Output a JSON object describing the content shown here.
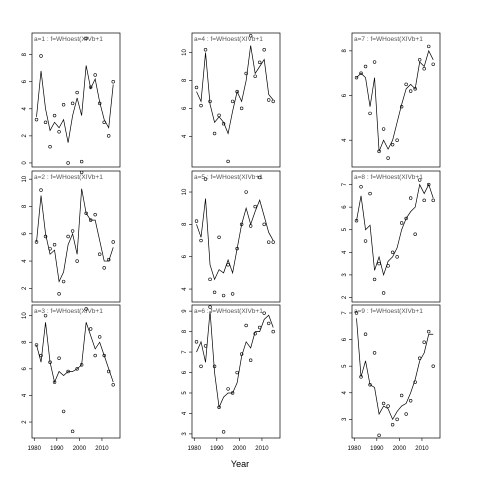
{
  "xlabel": "Year",
  "chart_data": [
    {
      "type": "scatter",
      "title": "a=1 : f=WHoest(XIVb+1",
      "x": [
        1981,
        1983,
        1985,
        1987,
        1989,
        1991,
        1993,
        1995,
        1997,
        1999,
        2001,
        2003,
        2005,
        2007,
        2009,
        2011,
        2013,
        2015
      ],
      "values": [
        3.2,
        7.9,
        3.0,
        1.2,
        3.5,
        2.3,
        4.3,
        0.0,
        4.4,
        5.2,
        0.1,
        9.2,
        5.6,
        6.5,
        4.4,
        3.0,
        2.0,
        6.0
      ],
      "line": [
        3.4,
        6.8,
        4.0,
        2.4,
        3.0,
        2.6,
        3.2,
        1.5,
        3.5,
        4.8,
        3.5,
        7.2,
        5.5,
        6.2,
        4.5,
        3.2,
        2.6,
        5.8
      ],
      "xlim": [
        1979,
        2018
      ],
      "ylim": [
        -0.3,
        9.6
      ],
      "yticks": [
        0,
        2,
        4,
        6,
        8
      ]
    },
    {
      "type": "scatter",
      "title": "a=2 : f=WHoest(XIVb+1",
      "x": [
        1981,
        1983,
        1985,
        1987,
        1989,
        1991,
        1993,
        1995,
        1997,
        1999,
        2001,
        2003,
        2005,
        2007,
        2009,
        2011,
        2013,
        2015
      ],
      "values": [
        5.4,
        9.2,
        5.8,
        4.9,
        5.2,
        1.6,
        2.5,
        5.8,
        6.2,
        4.0,
        10.5,
        7.5,
        7.0,
        7.4,
        4.5,
        3.5,
        4.1,
        5.4
      ],
      "line": [
        5.4,
        8.8,
        6.0,
        4.5,
        4.8,
        2.5,
        3.2,
        5.2,
        6.0,
        4.5,
        9.3,
        7.5,
        7.0,
        7.0,
        5.5,
        4.0,
        4.0,
        5.0
      ],
      "xlim": [
        1979,
        2018
      ],
      "ylim": [
        1.0,
        10.6
      ],
      "yticks": [
        2,
        4,
        6,
        8,
        10
      ]
    },
    {
      "type": "scatter",
      "title": "a=3 : f=WHoest(XIVb+1",
      "x": [
        1981,
        1983,
        1985,
        1987,
        1989,
        1991,
        1993,
        1995,
        1997,
        1999,
        2001,
        2003,
        2005,
        2007,
        2009,
        2011,
        2013,
        2015
      ],
      "values": [
        7.8,
        7.0,
        10.0,
        6.5,
        5.0,
        6.8,
        2.8,
        5.8,
        1.3,
        6.0,
        6.3,
        10.5,
        9.0,
        7.0,
        8.4,
        7.0,
        5.8,
        4.8
      ],
      "line": [
        7.8,
        6.5,
        9.5,
        6.5,
        5.0,
        5.8,
        5.5,
        5.8,
        5.8,
        6.0,
        6.3,
        9.5,
        8.5,
        7.5,
        8.0,
        7.0,
        6.0,
        5.0
      ],
      "xlim": [
        1979,
        2018
      ],
      "xticks": [
        1980,
        1990,
        2000,
        2010
      ],
      "ylim": [
        0.8,
        10.8
      ],
      "yticks": [
        2,
        4,
        6,
        8,
        10
      ]
    },
    {
      "type": "scatter",
      "title": "a=4 : f=WHoest(XIVb+1",
      "x": [
        1981,
        1983,
        1985,
        1987,
        1989,
        1991,
        1993,
        1995,
        1997,
        1999,
        2001,
        2003,
        2005,
        2007,
        2009,
        2011,
        2013,
        2015
      ],
      "values": [
        7.5,
        6.2,
        10.2,
        6.5,
        4.2,
        5.5,
        4.9,
        2.2,
        6.5,
        7.2,
        6.0,
        8.5,
        11.2,
        8.3,
        9.3,
        10.2,
        6.6,
        6.5
      ],
      "line": [
        7.2,
        6.5,
        10.0,
        6.3,
        5.0,
        5.4,
        5.0,
        4.2,
        5.8,
        7.2,
        6.5,
        8.0,
        10.5,
        8.5,
        9.0,
        9.5,
        7.0,
        6.6
      ],
      "xlim": [
        1979,
        2018
      ],
      "ylim": [
        1.8,
        11.4
      ],
      "yticks": [
        4,
        6,
        8,
        10
      ]
    },
    {
      "type": "scatter",
      "title": "a=5 : f=WHoest(XIVb+1",
      "x": [
        1981,
        1983,
        1985,
        1987,
        1989,
        1991,
        1993,
        1995,
        1997,
        1999,
        2001,
        2003,
        2005,
        2007,
        2009,
        2011,
        2013,
        2015
      ],
      "values": [
        8.2,
        7.0,
        10.8,
        4.6,
        3.8,
        7.2,
        3.6,
        5.5,
        3.7,
        6.5,
        8.0,
        10.0,
        7.9,
        9.1,
        10.9,
        8.0,
        6.9,
        6.9
      ],
      "line": [
        8.0,
        7.2,
        9.6,
        5.5,
        4.6,
        5.2,
        5.0,
        5.8,
        5.0,
        6.5,
        8.0,
        9.0,
        8.0,
        8.8,
        9.5,
        8.5,
        7.5,
        7.0
      ],
      "xlim": [
        1979,
        2018
      ],
      "ylim": [
        3.2,
        11.3
      ],
      "yticks": [
        4,
        6,
        8,
        10
      ]
    },
    {
      "type": "scatter",
      "title": "a=6 : f=WHoest(XIVb+1",
      "x": [
        1981,
        1983,
        1985,
        1987,
        1989,
        1991,
        1993,
        1995,
        1997,
        1999,
        2001,
        2003,
        2005,
        2007,
        2009,
        2011,
        2013,
        2015
      ],
      "values": [
        7.5,
        6.3,
        7.3,
        9.2,
        6.3,
        4.3,
        3.1,
        5.2,
        5.0,
        6.0,
        6.9,
        8.3,
        6.6,
        7.9,
        8.2,
        8.9,
        8.4,
        8.0
      ],
      "line": [
        7.0,
        7.5,
        6.5,
        9.0,
        6.0,
        4.3,
        4.8,
        5.0,
        5.0,
        5.5,
        6.8,
        7.5,
        7.2,
        8.0,
        8.0,
        8.6,
        8.8,
        8.2
      ],
      "xlim": [
        1979,
        2018
      ],
      "xticks": [
        1980,
        1990,
        2000,
        2010
      ],
      "ylim": [
        2.8,
        9.3
      ],
      "yticks": [
        3,
        4,
        5,
        6,
        7,
        8,
        9
      ]
    },
    {
      "type": "scatter",
      "title": "a=7 : f=WHoest(XIVb+1",
      "x": [
        1981,
        1983,
        1985,
        1987,
        1989,
        1991,
        1993,
        1995,
        1997,
        1999,
        2001,
        2003,
        2005,
        2007,
        2009,
        2011,
        2013,
        2015
      ],
      "values": [
        6.8,
        7.0,
        7.3,
        5.2,
        7.5,
        3.5,
        4.5,
        3.2,
        3.8,
        4.0,
        5.5,
        6.5,
        6.2,
        6.3,
        7.6,
        7.2,
        8.2,
        7.4
      ],
      "line": [
        6.8,
        7.0,
        6.8,
        5.5,
        6.8,
        3.5,
        4.0,
        3.6,
        4.0,
        4.8,
        5.6,
        6.3,
        6.5,
        6.3,
        7.5,
        7.3,
        8.0,
        7.6
      ],
      "xlim": [
        1979,
        2018
      ],
      "ylim": [
        2.8,
        8.8
      ],
      "yticks": [
        4,
        6,
        8
      ]
    },
    {
      "type": "scatter",
      "title": "a=8 : f=WHoest(XIVb+1",
      "x": [
        1981,
        1983,
        1985,
        1987,
        1989,
        1991,
        1993,
        1995,
        1997,
        1999,
        2001,
        2003,
        2005,
        2007,
        2009,
        2011,
        2013,
        2015
      ],
      "values": [
        5.4,
        6.9,
        4.5,
        6.6,
        2.8,
        3.5,
        2.2,
        3.4,
        4.0,
        3.8,
        5.3,
        5.5,
        6.4,
        4.8,
        7.2,
        6.3,
        7.0,
        6.3
      ],
      "line": [
        5.4,
        6.5,
        5.0,
        5.2,
        3.2,
        3.8,
        3.0,
        3.6,
        3.8,
        4.2,
        5.0,
        5.5,
        5.8,
        6.0,
        7.0,
        6.6,
        7.0,
        6.4
      ],
      "xlim": [
        1979,
        2018
      ],
      "ylim": [
        1.8,
        7.6
      ],
      "yticks": [
        2,
        3,
        4,
        5,
        6,
        7
      ]
    },
    {
      "type": "scatter",
      "title": "a=9 : f=WHoest(XIVb+1",
      "x": [
        1981,
        1983,
        1985,
        1987,
        1989,
        1991,
        1993,
        1995,
        1997,
        1999,
        2001,
        2003,
        2005,
        2007,
        2009,
        2011,
        2013,
        2015
      ],
      "values": [
        7.0,
        4.6,
        6.2,
        4.3,
        5.5,
        2.4,
        3.6,
        3.5,
        2.8,
        3.0,
        3.9,
        3.2,
        3.7,
        4.4,
        5.3,
        5.9,
        6.3,
        5.0
      ],
      "line": [
        6.8,
        4.6,
        5.2,
        4.3,
        4.2,
        3.2,
        3.5,
        3.4,
        3.0,
        3.3,
        3.5,
        3.6,
        4.0,
        4.5,
        5.2,
        5.5,
        6.2,
        6.2
      ],
      "xlim": [
        1979,
        2018
      ],
      "xticks": [
        1980,
        1990,
        2000,
        2010
      ],
      "ylim": [
        2.3,
        7.3
      ],
      "yticks": [
        3,
        4,
        5,
        6,
        7
      ]
    }
  ]
}
